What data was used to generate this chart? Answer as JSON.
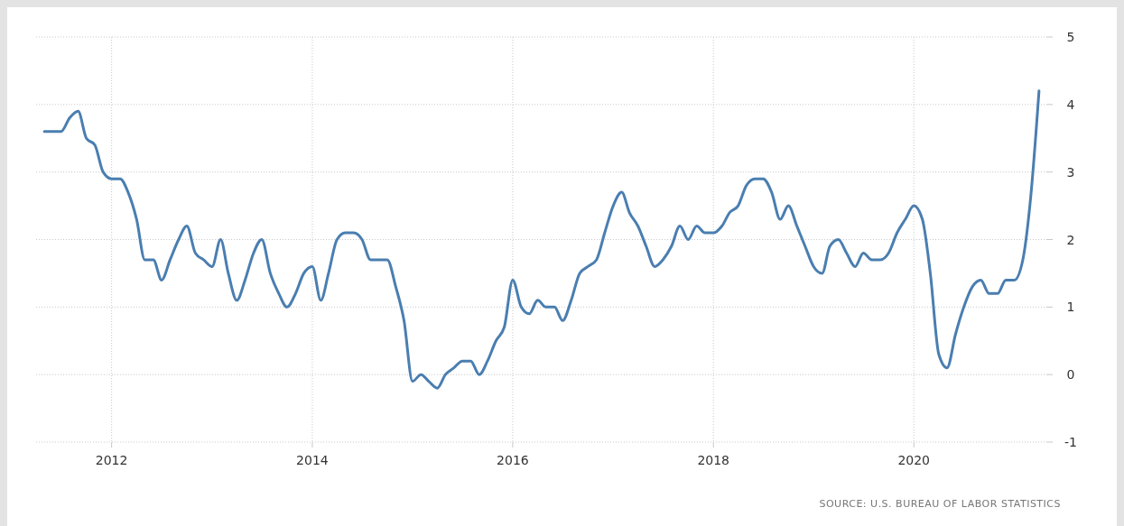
{
  "chart_data": {
    "type": "line",
    "annotations": [
      "SOURCE: U.S. BUREAU OF LABOR STATISTICS"
    ],
    "x": [
      "2011-05",
      "2011-06",
      "2011-07",
      "2011-08",
      "2011-09",
      "2011-10",
      "2011-11",
      "2011-12",
      "2012-01",
      "2012-02",
      "2012-03",
      "2012-04",
      "2012-05",
      "2012-06",
      "2012-07",
      "2012-08",
      "2012-09",
      "2012-10",
      "2012-11",
      "2012-12",
      "2013-01",
      "2013-02",
      "2013-03",
      "2013-04",
      "2013-05",
      "2013-06",
      "2013-07",
      "2013-08",
      "2013-09",
      "2013-10",
      "2013-11",
      "2013-12",
      "2014-01",
      "2014-02",
      "2014-03",
      "2014-04",
      "2014-05",
      "2014-06",
      "2014-07",
      "2014-08",
      "2014-09",
      "2014-10",
      "2014-11",
      "2014-12",
      "2015-01",
      "2015-02",
      "2015-03",
      "2015-04",
      "2015-05",
      "2015-06",
      "2015-07",
      "2015-08",
      "2015-09",
      "2015-10",
      "2015-11",
      "2015-12",
      "2016-01",
      "2016-02",
      "2016-03",
      "2016-04",
      "2016-05",
      "2016-06",
      "2016-07",
      "2016-08",
      "2016-09",
      "2016-10",
      "2016-11",
      "2016-12",
      "2017-01",
      "2017-02",
      "2017-03",
      "2017-04",
      "2017-05",
      "2017-06",
      "2017-07",
      "2017-08",
      "2017-09",
      "2017-10",
      "2017-11",
      "2017-12",
      "2018-01",
      "2018-02",
      "2018-03",
      "2018-04",
      "2018-05",
      "2018-06",
      "2018-07",
      "2018-08",
      "2018-09",
      "2018-10",
      "2018-11",
      "2018-12",
      "2019-01",
      "2019-02",
      "2019-03",
      "2019-04",
      "2019-05",
      "2019-06",
      "2019-07",
      "2019-08",
      "2019-09",
      "2019-10",
      "2019-11",
      "2019-12",
      "2020-01",
      "2020-02",
      "2020-03",
      "2020-04",
      "2020-05",
      "2020-06",
      "2020-07",
      "2020-08",
      "2020-09",
      "2020-10",
      "2020-11",
      "2020-12",
      "2021-01",
      "2021-02",
      "2021-03",
      "2021-04"
    ],
    "series": [
      {
        "color": "#4a7eb0",
        "values": [
          3.6,
          3.6,
          3.6,
          3.8,
          3.9,
          3.5,
          3.4,
          3.0,
          2.9,
          2.9,
          2.7,
          2.3,
          1.7,
          1.7,
          1.4,
          1.7,
          2.0,
          2.2,
          1.8,
          1.7,
          1.6,
          2.0,
          1.5,
          1.1,
          1.4,
          1.8,
          2.0,
          1.5,
          1.2,
          1.0,
          1.2,
          1.5,
          1.6,
          1.1,
          1.5,
          2.0,
          2.1,
          2.1,
          2.0,
          1.7,
          1.7,
          1.7,
          1.3,
          0.8,
          -0.1,
          0.0,
          -0.1,
          -0.2,
          0.0,
          0.1,
          0.2,
          0.2,
          0.0,
          0.2,
          0.5,
          0.7,
          1.4,
          1.0,
          0.9,
          1.1,
          1.0,
          1.0,
          0.8,
          1.1,
          1.5,
          1.6,
          1.7,
          2.1,
          2.5,
          2.7,
          2.4,
          2.2,
          1.9,
          1.6,
          1.7,
          1.9,
          2.2,
          2.0,
          2.2,
          2.1,
          2.1,
          2.2,
          2.4,
          2.5,
          2.8,
          2.9,
          2.9,
          2.7,
          2.3,
          2.5,
          2.2,
          1.9,
          1.6,
          1.5,
          1.9,
          2.0,
          1.8,
          1.6,
          1.8,
          1.7,
          1.7,
          1.8,
          2.1,
          2.3,
          2.5,
          2.3,
          1.5,
          0.3,
          0.1,
          0.6,
          1.0,
          1.3,
          1.4,
          1.2,
          1.2,
          1.4,
          1.4,
          1.7,
          2.6,
          4.2
        ]
      }
    ],
    "xlim": [
      "2011-04",
      "2021-05"
    ],
    "xticks": [
      {
        "value": "2012",
        "label": "2012"
      },
      {
        "value": "2014",
        "label": "2014"
      },
      {
        "value": "2016",
        "label": "2016"
      },
      {
        "value": "2018",
        "label": "2018"
      },
      {
        "value": "2020",
        "label": "2020"
      }
    ],
    "ylim": [
      -1,
      5
    ],
    "yticks": [
      -1,
      0,
      1,
      2,
      3,
      4,
      5
    ],
    "grid": true
  }
}
